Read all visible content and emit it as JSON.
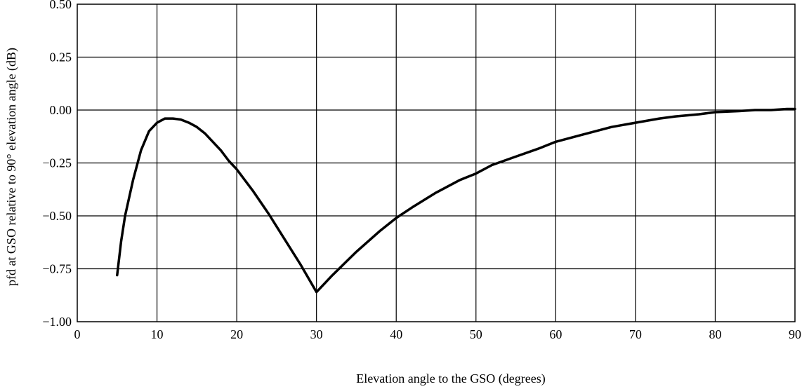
{
  "chart_data": {
    "type": "line",
    "title": "",
    "xlabel": "Elevation angle to the GSO (degrees)",
    "ylabel": "pfd at GSO relative to 90° elevation angle (dB)",
    "xlim": [
      0,
      90
    ],
    "ylim": [
      -1.0,
      0.5
    ],
    "grid": true,
    "x_ticks": [
      0,
      10,
      20,
      30,
      40,
      50,
      60,
      70,
      80,
      90
    ],
    "x_tick_labels": [
      "0",
      "10",
      "20",
      "30",
      "40",
      "50",
      "60",
      "70",
      "80",
      "90"
    ],
    "y_ticks": [
      0.5,
      0.25,
      0.0,
      -0.25,
      -0.5,
      -0.75,
      -1.0
    ],
    "y_tick_labels": [
      "0.50",
      "0.25",
      "0.00",
      "−0.25",
      "−0.50",
      "−0.75",
      "−1.00"
    ],
    "series": [
      {
        "color": "#000000",
        "x": [
          5,
          5.5,
          6,
          7,
          8,
          9,
          10,
          11,
          12,
          13,
          14,
          15,
          16,
          17,
          18,
          19,
          20,
          22,
          24,
          26,
          28,
          30,
          32,
          35,
          38,
          40,
          42,
          45,
          48,
          50,
          52,
          55,
          58,
          60,
          63,
          65,
          67,
          70,
          73,
          75,
          78,
          80,
          83,
          85,
          87,
          89,
          90
        ],
        "y": [
          -0.78,
          -0.62,
          -0.5,
          -0.33,
          -0.19,
          -0.1,
          -0.06,
          -0.04,
          -0.04,
          -0.045,
          -0.06,
          -0.08,
          -0.11,
          -0.15,
          -0.19,
          -0.24,
          -0.28,
          -0.38,
          -0.49,
          -0.61,
          -0.73,
          -0.86,
          -0.78,
          -0.67,
          -0.57,
          -0.51,
          -0.46,
          -0.39,
          -0.33,
          -0.3,
          -0.26,
          -0.22,
          -0.18,
          -0.15,
          -0.12,
          -0.1,
          -0.08,
          -0.06,
          -0.04,
          -0.03,
          -0.02,
          -0.01,
          -0.005,
          0.0,
          0.0,
          0.005,
          0.005
        ]
      }
    ]
  }
}
